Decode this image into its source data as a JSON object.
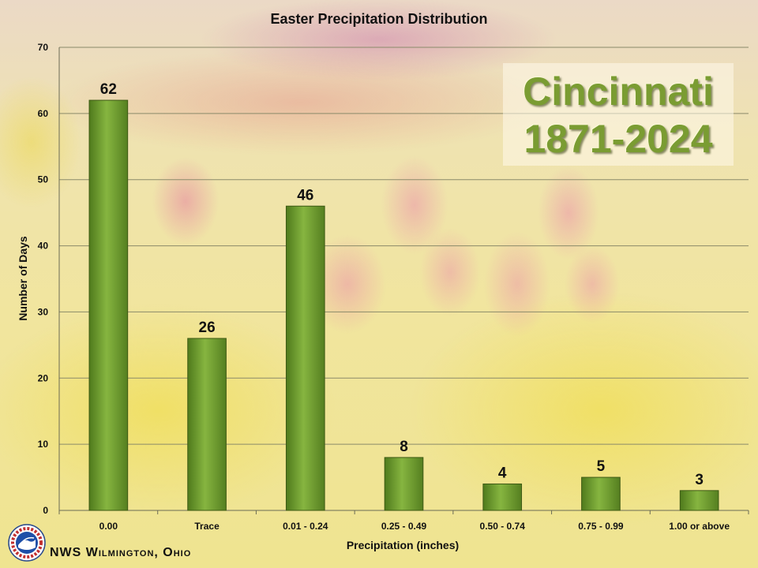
{
  "chart_data": {
    "type": "bar",
    "title": "Easter Precipitation Distribution",
    "xlabel": "Precipitation (inches)",
    "ylabel": "Number of Days",
    "categories": [
      "0.00",
      "Trace",
      "0.01 - 0.24",
      "0.25 - 0.49",
      "0.50 - 0.74",
      "0.75 - 0.99",
      "1.00 or above"
    ],
    "values": [
      62,
      26,
      46,
      8,
      4,
      5,
      3
    ],
    "data_labels": [
      "62",
      "26",
      "46",
      "8",
      "4",
      "5",
      "3"
    ],
    "ylim": [
      0,
      70
    ],
    "yticks": [
      0,
      10,
      20,
      30,
      40,
      50,
      60,
      70
    ],
    "ytick_labels": [
      "0",
      "10",
      "20",
      "30",
      "40",
      "50",
      "60",
      "70"
    ],
    "grid": true,
    "bar_color": "#6f9a2e",
    "bar_edge_color": "#3e5a14"
  },
  "overlay": {
    "line1": "Cincinnati",
    "line2": "1871-2024",
    "color": "#7a9c32"
  },
  "footer": {
    "org": "NWS Wilmington, Ohio",
    "logo_icon": "noaa-nws-logo-icon"
  }
}
